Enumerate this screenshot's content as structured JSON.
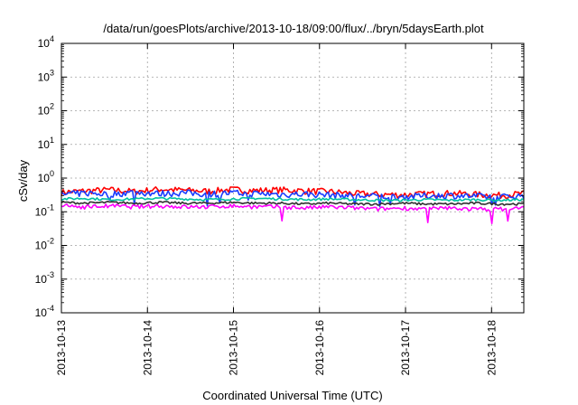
{
  "chart_data": {
    "type": "line",
    "title": "/data/run/goesPlots/archive/2013-10-18/09:00/flux/../bryn/5daysEarth.plot",
    "xlabel": "Coordinated Universal Time (UTC)",
    "ylabel": "cSv/day",
    "y_scale": "log",
    "ylim": [
      0.0001,
      10000
    ],
    "y_ticks": [
      {
        "value": 0.0001,
        "base": "10",
        "exp": "-4"
      },
      {
        "value": 0.001,
        "base": "10",
        "exp": "-3"
      },
      {
        "value": 0.01,
        "base": "10",
        "exp": "-2"
      },
      {
        "value": 0.1,
        "base": "10",
        "exp": "-1"
      },
      {
        "value": 1,
        "base": "10",
        "exp": "0"
      },
      {
        "value": 10,
        "base": "10",
        "exp": "1"
      },
      {
        "value": 100,
        "base": "10",
        "exp": "2"
      },
      {
        "value": 1000,
        "base": "10",
        "exp": "3"
      },
      {
        "value": 10000,
        "base": "10",
        "exp": "4"
      }
    ],
    "xlim": [
      "2013-10-13",
      "2013-10-18 09:00"
    ],
    "x_ticks": [
      "2013-10-13",
      "2013-10-14",
      "2013-10-15",
      "2013-10-16",
      "2013-10-17",
      "2013-10-18"
    ],
    "grid": true,
    "series": [
      {
        "color": "#ff0000",
        "base": 0.42,
        "values": [
          0.38,
          0.42,
          0.45,
          0.4,
          0.47,
          0.44,
          0.41,
          0.46,
          0.43,
          0.45,
          0.42,
          0.4,
          0.35,
          0.33,
          0.32,
          0.34,
          0.36,
          0.33,
          0.31,
          0.35
        ]
      },
      {
        "color": "#1a3cff",
        "base": 0.34,
        "values": [
          0.33,
          0.36,
          0.34,
          0.38,
          0.35,
          0.37,
          0.34,
          0.36,
          0.35,
          0.33,
          0.34,
          0.32,
          0.3,
          0.29,
          0.28,
          0.3,
          0.31,
          0.29,
          0.28,
          0.3
        ]
      },
      {
        "color": "#00c0a0",
        "base": 0.24,
        "values": [
          0.24,
          0.25,
          0.23,
          0.24,
          0.25,
          0.24,
          0.23,
          0.24,
          0.25,
          0.24,
          0.23,
          0.24,
          0.23,
          0.22,
          0.22,
          0.23,
          0.22,
          0.23,
          0.22,
          0.23
        ]
      },
      {
        "color": "#303030",
        "base": 0.18,
        "values": [
          0.19,
          0.18,
          0.19,
          0.18,
          0.19,
          0.18,
          0.18,
          0.19,
          0.18,
          0.18,
          0.17,
          0.18,
          0.17,
          0.17,
          0.18,
          0.17,
          0.17,
          0.18,
          0.17,
          0.17
        ]
      },
      {
        "color": "#ff00ff",
        "base": 0.15,
        "values": [
          0.15,
          0.14,
          0.15,
          0.14,
          0.15,
          0.14,
          0.14,
          0.15,
          0.14,
          0.14,
          0.13,
          0.14,
          0.13,
          0.12,
          0.13,
          0.12,
          0.13,
          0.12,
          0.12,
          0.13
        ]
      }
    ]
  }
}
